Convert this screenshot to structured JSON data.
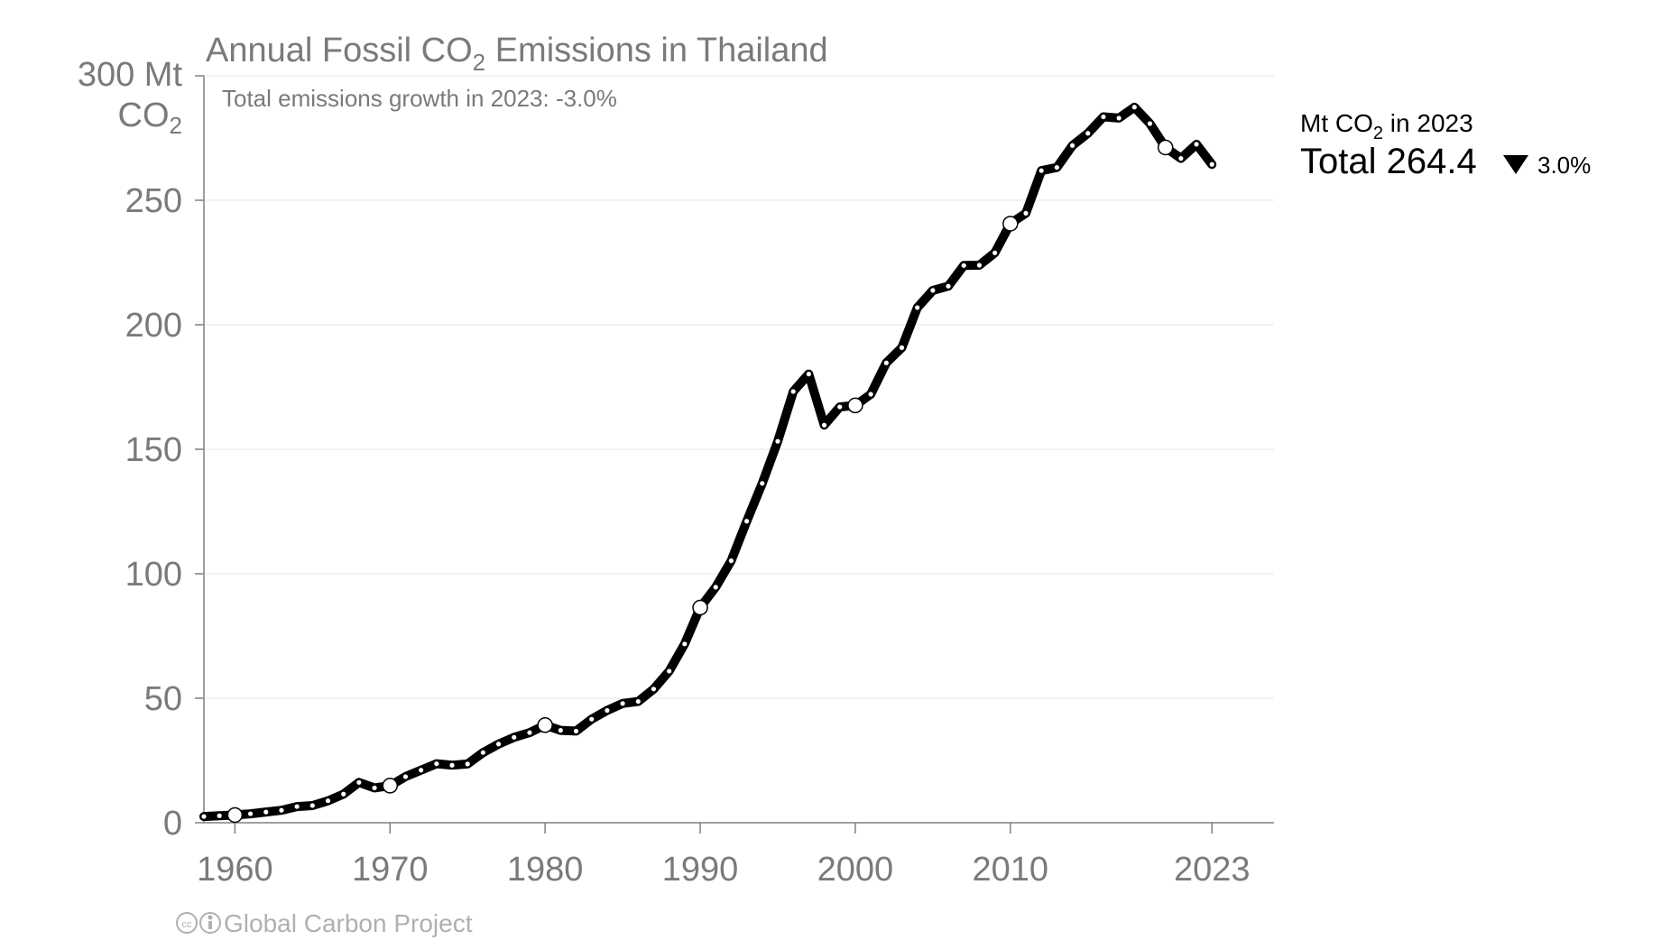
{
  "chart_data": {
    "type": "line",
    "title": "Annual Fossil CO",
    "title_sub": "2",
    "title_rest": " Emissions in Thailand",
    "subtitle": "Total emissions growth in 2023: -3.0%",
    "ylabel_top": "300 Mt",
    "ylabel_unit": "CO",
    "ylabel_unit_sub": "2",
    "ylim": [
      0,
      300
    ],
    "xlim": [
      1958,
      2027
    ],
    "y_ticks": [
      "0",
      "50",
      "100",
      "150",
      "200",
      "250"
    ],
    "y_tick_values": [
      0,
      50,
      100,
      150,
      200,
      250
    ],
    "x_ticks": [
      "1960",
      "1970",
      "1980",
      "1990",
      "2000",
      "2010",
      "2023"
    ],
    "x_tick_values": [
      1960,
      1970,
      1980,
      1990,
      2000,
      2010,
      2023
    ],
    "grid": true,
    "series": [
      {
        "x": [
          1958,
          1959,
          1960,
          1961,
          1962,
          1963,
          1964,
          1965,
          1966,
          1967,
          1968,
          1969,
          1970,
          1971,
          1972,
          1973,
          1974,
          1975,
          1976,
          1977,
          1978,
          1979,
          1980,
          1981,
          1982,
          1983,
          1984,
          1985,
          1986,
          1987,
          1988,
          1989,
          1990,
          1991,
          1992,
          1993,
          1994,
          1995,
          1996,
          1997,
          1998,
          1999,
          2000,
          2001,
          2002,
          2003,
          2004,
          2005,
          2006,
          2007,
          2008,
          2009,
          2010,
          2011,
          2012,
          2013,
          2014,
          2015,
          2016,
          2017,
          2018,
          2019,
          2020,
          2021,
          2022,
          2023
        ],
        "values": [
          2.5,
          2.8,
          3.1,
          3.6,
          4.3,
          5.0,
          6.5,
          6.9,
          8.8,
          11.5,
          16.2,
          14.0,
          14.9,
          18.5,
          21.1,
          23.7,
          23.1,
          23.6,
          28.2,
          31.6,
          34.3,
          36.2,
          39.2,
          37.1,
          36.8,
          41.6,
          45.1,
          47.9,
          48.7,
          53.7,
          60.9,
          71.8,
          86.4,
          94.6,
          105.2,
          121.1,
          136.3,
          153.2,
          173.2,
          180.2,
          159.7,
          167.0,
          167.6,
          172.1,
          184.7,
          190.8,
          206.9,
          213.8,
          215.5,
          223.8,
          223.9,
          228.9,
          240.6,
          244.8,
          261.9,
          263.2,
          272.0,
          276.9,
          283.5,
          283.0,
          287.4,
          280.8,
          271.2,
          266.8,
          272.5,
          264.4
        ],
        "highlight_years": [
          1960,
          1970,
          1980,
          1990,
          2000,
          2010,
          2020
        ]
      }
    ],
    "legend": {
      "unit_label": "Mt CO",
      "unit_sub": "2",
      "unit_rest": " in 2023",
      "total_label": "Total 264.4",
      "change_pct": "3.0%",
      "change_direction": "down"
    },
    "credit": "Global Carbon Project",
    "line_color": "#000000",
    "marker_color": "#ffffff"
  }
}
